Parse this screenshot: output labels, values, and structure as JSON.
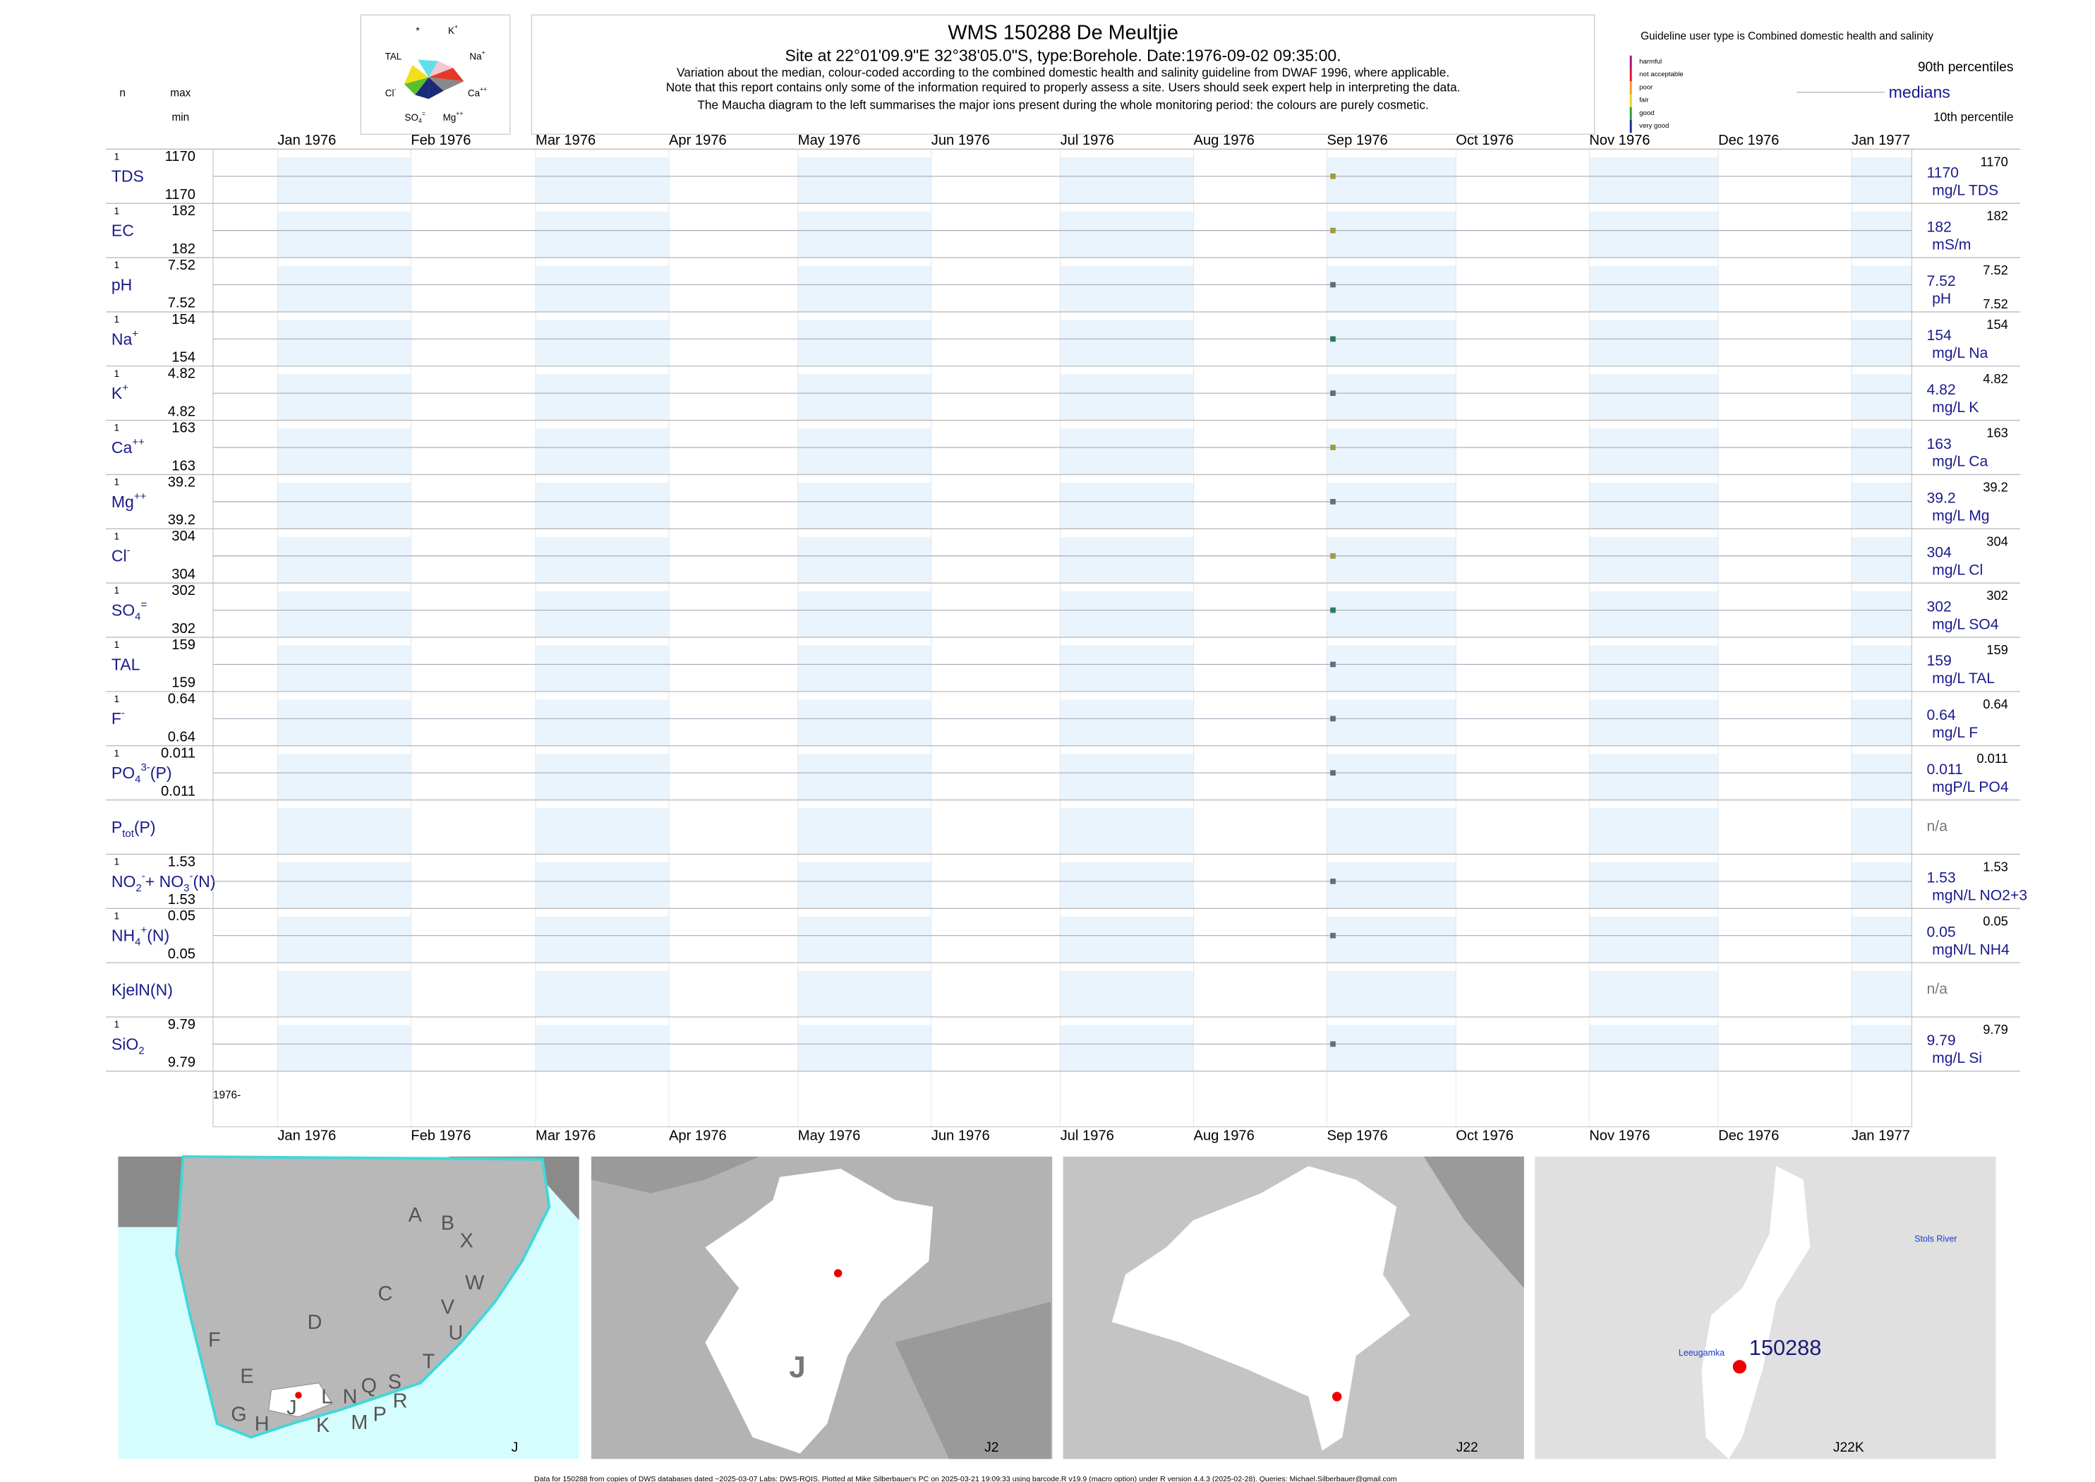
{
  "header": {
    "title": "WMS 150288  De Meultjie",
    "subtitle": "Site at 22°01'09.9\"E 32°38'05.0\"S, type:Borehole. Date:",
    "date": "1976-09-02 09:35:00",
    "subtitle_end": ".",
    "notes": [
      "Variation about the median,  colour-coded according to the combined domestic health and salinity guideline from DWAF 1996, where applicable.",
      "Note that this report contains only some of the information required to properly assess a site. Users should seek expert help in interpreting the data.",
      "The Maucha diagram to the left summarises the major ions present during the whole monitoring period: the colours are purely cosmetic."
    ]
  },
  "maucha": {
    "labels": [
      [
        {
          "text": "*"
        }
      ],
      [
        {
          "text": "K"
        },
        {
          "text": "+",
          "pos": "sup"
        }
      ],
      [
        {
          "text": "TAL"
        }
      ],
      [
        {
          "text": "Na"
        },
        {
          "text": "+",
          "pos": "sup"
        }
      ],
      [
        {
          "text": "Cl"
        },
        {
          "text": "-",
          "pos": "sup"
        }
      ],
      [
        {
          "text": "Ca"
        },
        {
          "text": "++",
          "pos": "sup"
        }
      ],
      [
        {
          "text": "SO"
        },
        {
          "text": "4",
          "pos": "sub"
        },
        {
          "text": "=",
          "pos": "sup"
        }
      ],
      [
        {
          "text": "Mg"
        },
        {
          "text": "++",
          "pos": "sup"
        }
      ]
    ]
  },
  "column_headers": {
    "n": "n",
    "max": "max",
    "min": "min"
  },
  "guideline": {
    "title": "Guideline user type is Combined domestic health and salinity",
    "classes": [
      {
        "label": "harmful",
        "color": "#a0137a"
      },
      {
        "label": "not acceptable",
        "color": "#e0102b"
      },
      {
        "label": "poor",
        "color": "#f39a1c"
      },
      {
        "label": "fair",
        "color": "#e6d21a"
      },
      {
        "label": "good",
        "color": "#2a9a3a"
      },
      {
        "label": "very good",
        "color": "#1a2a9a"
      }
    ]
  },
  "legend": {
    "p90": "90th percentiles",
    "median": "medians",
    "p10": "10th percentile"
  },
  "xlim": [
    "1975-12-17",
    "1977-01-15"
  ],
  "xticks": [
    {
      "value": "1976-01-01",
      "label": "Jan 1976"
    },
    {
      "value": "1976-02-01",
      "label": "Feb 1976"
    },
    {
      "value": "1976-03-01",
      "label": "Mar 1976"
    },
    {
      "value": "1976-04-01",
      "label": "Apr 1976"
    },
    {
      "value": "1976-05-01",
      "label": "May 1976"
    },
    {
      "value": "1976-06-01",
      "label": "Jun 1976"
    },
    {
      "value": "1976-07-01",
      "label": "Jul 1976"
    },
    {
      "value": "1976-08-01",
      "label": "Aug 1976"
    },
    {
      "value": "1976-09-01",
      "label": "Sep 1976"
    },
    {
      "value": "1976-10-01",
      "label": "Oct 1976"
    },
    {
      "value": "1976-11-01",
      "label": "Nov 1976"
    },
    {
      "value": "1976-12-01",
      "label": "Dec 1976"
    },
    {
      "value": "1977-01-01",
      "label": "Jan 1977"
    }
  ],
  "year_label": "1976-",
  "panels": [
    {
      "label": [
        {
          "text": "TDS"
        }
      ],
      "n": 1,
      "max": 1170,
      "min": 1170,
      "median": 1170,
      "p90": 1170,
      "unit": "mg/L TDS",
      "color": "#a39a3c"
    },
    {
      "label": [
        {
          "text": "EC"
        }
      ],
      "n": 1,
      "max": 182,
      "min": 182,
      "median": 182,
      "p90": 182,
      "unit": "mS/m",
      "color": "#a39a3c"
    },
    {
      "label": [
        {
          "text": "pH"
        }
      ],
      "n": 1,
      "max": 7.52,
      "min": 7.52,
      "median": 7.52,
      "p90": 7.52,
      "p10": 7.52,
      "unit": "pH",
      "color": "#6a6a7a"
    },
    {
      "label": [
        {
          "text": "Na"
        },
        {
          "text": "+",
          "pos": "sup"
        }
      ],
      "n": 1,
      "max": 154,
      "min": 154,
      "median": 154,
      "p90": 154,
      "unit": "mg/L Na",
      "color": "#2f7a5a"
    },
    {
      "label": [
        {
          "text": "K"
        },
        {
          "text": "+",
          "pos": "sup"
        }
      ],
      "n": 1,
      "max": 4.82,
      "min": 4.82,
      "median": 4.82,
      "p90": 4.82,
      "unit": "mg/L K",
      "color": "#6a6a7a"
    },
    {
      "label": [
        {
          "text": "Ca"
        },
        {
          "text": "++",
          "pos": "sup"
        }
      ],
      "n": 1,
      "max": 163,
      "min": 163,
      "median": 163,
      "p90": 163,
      "unit": "mg/L Ca",
      "color": "#a39a3c"
    },
    {
      "label": [
        {
          "text": "Mg"
        },
        {
          "text": "++",
          "pos": "sup"
        }
      ],
      "n": 1,
      "max": 39.2,
      "min": 39.2,
      "median": 39.2,
      "p90": 39.2,
      "unit": "mg/L Mg",
      "color": "#6a6a7a"
    },
    {
      "label": [
        {
          "text": "Cl"
        },
        {
          "text": "-",
          "pos": "sup"
        }
      ],
      "n": 1,
      "max": 304,
      "min": 304,
      "median": 304,
      "p90": 304,
      "unit": "mg/L Cl",
      "color": "#a39a3c"
    },
    {
      "label": [
        {
          "text": "SO"
        },
        {
          "text": "4",
          "pos": "sub"
        },
        {
          "text": "=",
          "pos": "sup"
        }
      ],
      "n": 1,
      "max": 302,
      "min": 302,
      "median": 302,
      "p90": 302,
      "unit": "mg/L SO4",
      "color": "#2f7a5a"
    },
    {
      "label": [
        {
          "text": "TAL"
        }
      ],
      "n": 1,
      "max": 159,
      "min": 159,
      "median": 159,
      "p90": 159,
      "unit": "mg/L TAL",
      "color": "#6a6a7a"
    },
    {
      "label": [
        {
          "text": "F"
        },
        {
          "text": "-",
          "pos": "sup"
        }
      ],
      "n": 1,
      "max": 0.64,
      "min": 0.64,
      "median": 0.64,
      "p90": 0.64,
      "unit": "mg/L F",
      "color": "#6a6a7a"
    },
    {
      "label": [
        {
          "text": "PO"
        },
        {
          "text": "4",
          "pos": "sub"
        },
        {
          "text": "3-",
          "pos": "sup"
        },
        {
          "text": "(P)"
        }
      ],
      "n": 1,
      "max": 0.011,
      "min": 0.011,
      "median": 0.011,
      "p90": 0.011,
      "unit": "mgP/L PO4",
      "color": "#6a6a7a"
    },
    {
      "label": [
        {
          "text": "P"
        },
        {
          "text": "tot",
          "pos": "sub"
        },
        {
          "text": "(P)"
        }
      ],
      "na": "n/a"
    },
    {
      "label": [
        {
          "text": "NO"
        },
        {
          "text": "2",
          "pos": "sub"
        },
        {
          "text": "-",
          "pos": "sup"
        },
        {
          "text": "+ NO"
        },
        {
          "text": "3",
          "pos": "sub"
        },
        {
          "text": "-",
          "pos": "sup"
        },
        {
          "text": "(N)"
        }
      ],
      "n": 1,
      "max": 1.53,
      "min": 1.53,
      "median": 1.53,
      "p90": 1.53,
      "unit": "mgN/L NO2+3",
      "color": "#6a6a7a"
    },
    {
      "label": [
        {
          "text": "NH"
        },
        {
          "text": "4",
          "pos": "sub"
        },
        {
          "text": "+",
          "pos": "sup"
        },
        {
          "text": "(N)"
        }
      ],
      "n": 1,
      "max": 0.05,
      "min": 0.05,
      "median": 0.05,
      "p90": 0.05,
      "unit": "mgN/L NH4",
      "color": "#6a6a7a"
    },
    {
      "label": [
        {
          "text": "KjelN(N)"
        }
      ],
      "na": "n/a"
    },
    {
      "label": [
        {
          "text": "SiO"
        },
        {
          "text": "2",
          "pos": "sub"
        }
      ],
      "n": 1,
      "max": 9.79,
      "min": 9.79,
      "median": 9.79,
      "p90": 9.79,
      "unit": "mg/L Si",
      "color": "#6a6a7a"
    }
  ],
  "maps": [
    {
      "label": "J",
      "letters": [
        "A",
        "B",
        "X",
        "C",
        "W",
        "D",
        "V",
        "U",
        "F",
        "T",
        "E",
        "S",
        "Q",
        "L",
        "N",
        "R",
        "J",
        "P",
        "M",
        "G",
        "H",
        "K"
      ]
    },
    {
      "label": "J2",
      "letters": [
        "J"
      ]
    },
    {
      "label": "J22"
    },
    {
      "label": "J22K",
      "site": "150288",
      "places": [
        "Leeugamka",
        "Stols River"
      ]
    }
  ],
  "footer": "Data for 150288 from copies of DWS databases dated ~2025-03-07 Labs: DWS-RQIS. Plotted at Mike Silberbauer's PC on 2025-03-21 19:09:33 using barcode.R v19.9 (macro option) under R version 4.4.3 (2025-02-28). Queries: Michael.Silberbauer@gmail.com"
}
